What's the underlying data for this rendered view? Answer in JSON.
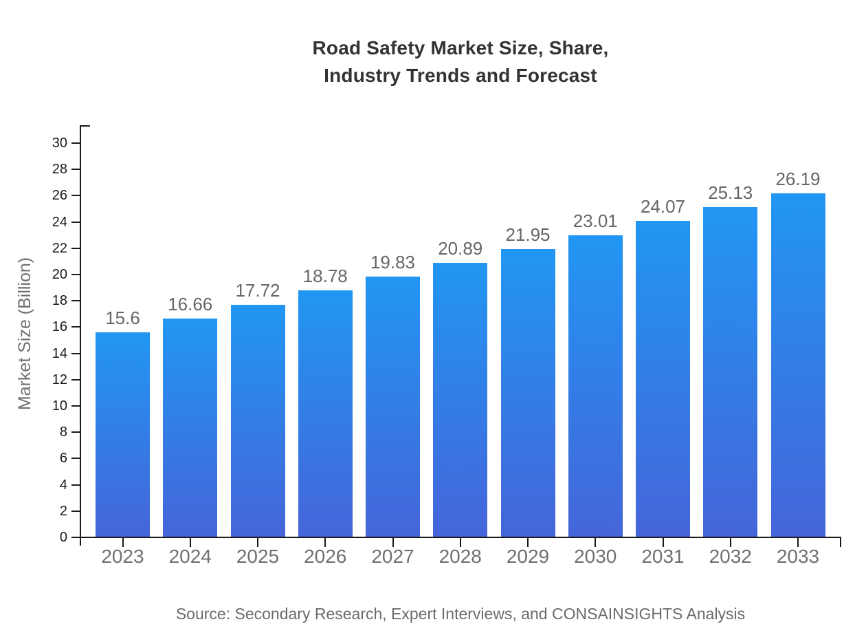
{
  "title": {
    "line1": "Road Safety Market Size, Share,",
    "line2": "Industry Trends and Forecast"
  },
  "source": {
    "text": "Source: Secondary Research, Expert Interviews, and CONSAINSIGHTS Analysis"
  },
  "chart_data": {
    "type": "bar",
    "title": "Road Safety Market Size, Share, Industry Trends and Forecast",
    "categories": [
      "2023",
      "2024",
      "2025",
      "2026",
      "2027",
      "2028",
      "2029",
      "2030",
      "2031",
      "2032",
      "2033"
    ],
    "values": [
      15.6,
      16.66,
      17.72,
      18.78,
      19.83,
      20.89,
      21.95,
      23.01,
      24.07,
      25.13,
      26.19
    ],
    "value_labels": [
      "15.6",
      "16.66",
      "17.72",
      "18.78",
      "19.83",
      "20.89",
      "21.95",
      "23.01",
      "24.07",
      "25.13",
      "26.19"
    ],
    "xlabel": "",
    "ylabel": "Market Size (Billion)",
    "ylim": [
      0,
      30
    ],
    "ytick_step": 2,
    "grid": false,
    "legend": null,
    "colors": {
      "bar_gradient_top": "#2196f3",
      "bar_gradient_bottom": "#4565d9",
      "axis": "#1a1a1a",
      "title_text": "#333333",
      "tick_text": "#1a1a1a",
      "category_text": "#707070",
      "value_label_text": "#666666",
      "source_text": "#6b6b6b"
    }
  }
}
